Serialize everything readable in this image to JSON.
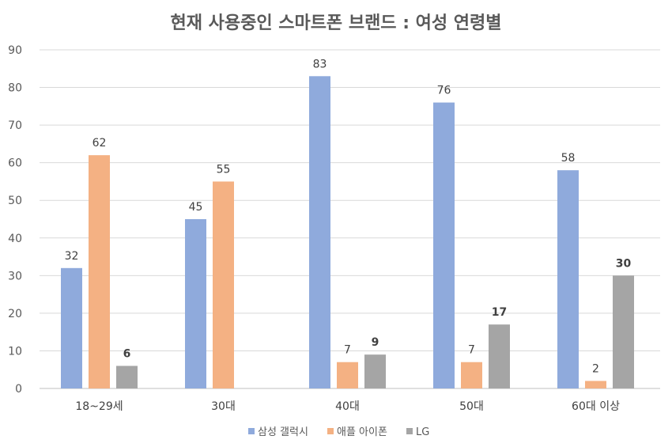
{
  "chart_data": {
    "type": "bar",
    "title": "현재 사용중인 스마트폰 브랜드 : 여성 연령별",
    "categories": [
      "18~29세",
      "30대",
      "40대",
      "50대",
      "60대 이상"
    ],
    "series": [
      {
        "name": "삼성 갤럭시",
        "color": "#8faadc",
        "values": [
          32,
          45,
          83,
          76,
          58
        ]
      },
      {
        "name": "애플 아이폰",
        "color": "#f4b183",
        "values": [
          62,
          55,
          7,
          7,
          2
        ]
      },
      {
        "name": "LG",
        "color": "#a5a5a5",
        "values": [
          6,
          null,
          9,
          17,
          30
        ]
      }
    ],
    "ylim": [
      0,
      90
    ],
    "yticks": [
      0,
      10,
      20,
      30,
      40,
      50,
      60,
      70,
      80,
      90
    ],
    "grid": true,
    "legend": "bottom"
  }
}
